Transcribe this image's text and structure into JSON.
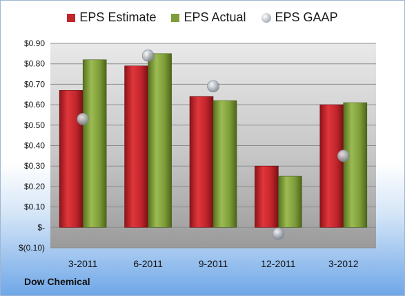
{
  "company": "Dow Chemical",
  "chart_data": {
    "type": "bar",
    "categories": [
      "3-2011",
      "6-2011",
      "9-2011",
      "12-2011",
      "3-2012"
    ],
    "series": [
      {
        "name": "EPS Estimate",
        "type": "bar",
        "color": "#c0262c",
        "values": [
          0.67,
          0.79,
          0.64,
          0.3,
          0.6
        ]
      },
      {
        "name": "EPS Actual",
        "type": "bar",
        "color": "#7e9d3a",
        "values": [
          0.82,
          0.85,
          0.62,
          0.25,
          0.61
        ]
      },
      {
        "name": "EPS GAAP",
        "type": "marker",
        "color": "#aeb5bd",
        "values": [
          0.53,
          0.84,
          0.69,
          -0.03,
          0.35
        ]
      }
    ],
    "yticks": [
      "$0.90",
      "$0.80",
      "$0.70",
      "$0.60",
      "$0.50",
      "$0.40",
      "$0.30",
      "$0.20",
      "$0.10",
      "$-",
      "$(0.10)"
    ],
    "ylim": [
      -0.1,
      0.9
    ],
    "legend": "top",
    "grid": true
  }
}
